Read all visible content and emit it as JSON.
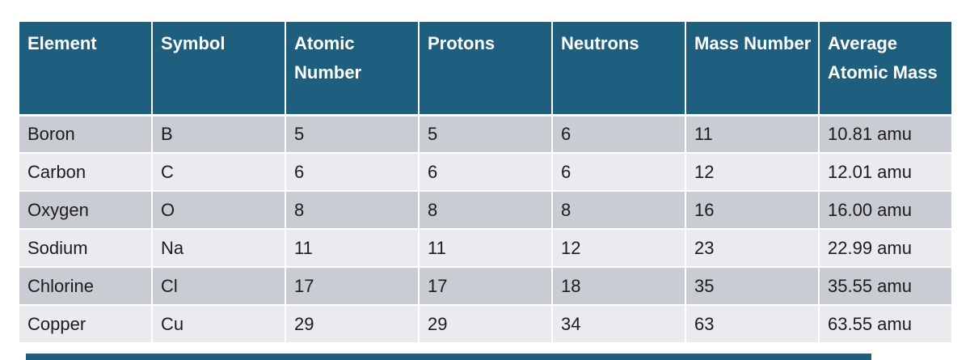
{
  "chart_data": {
    "type": "table",
    "title": "",
    "columns": [
      "Element",
      "Symbol",
      "Atomic Number",
      "Protons",
      "Neutrons",
      "Mass Number",
      "Average Atomic Mass"
    ],
    "rows": [
      [
        "Boron",
        "B",
        "5",
        "5",
        "6",
        "11",
        "10.81 amu"
      ],
      [
        "Carbon",
        "C",
        "6",
        "6",
        "6",
        "12",
        "12.01 amu"
      ],
      [
        "Oxygen",
        "O",
        "8",
        "8",
        "8",
        "16",
        "16.00 amu"
      ],
      [
        "Sodium",
        "Na",
        "11",
        "11",
        "12",
        "23",
        "22.99 amu"
      ],
      [
        "Chlorine",
        "Cl",
        "17",
        "17",
        "18",
        "35",
        "35.55 amu"
      ],
      [
        "Copper",
        "Cu",
        "29",
        "29",
        "34",
        "63",
        "63.55 amu"
      ]
    ],
    "legend": null,
    "grid": "white 2px separators, banded rows"
  },
  "colors": {
    "header_bg": "#1e5e7e",
    "header_text": "#ffffff",
    "row_band_dark": "#c9ccd3",
    "row_band_light": "#e9ebee",
    "body_text": "#1c1c1c",
    "grid_line": "#ffffff",
    "accent_bar": "#1e5e7e",
    "page_bg": "#ffffff"
  }
}
